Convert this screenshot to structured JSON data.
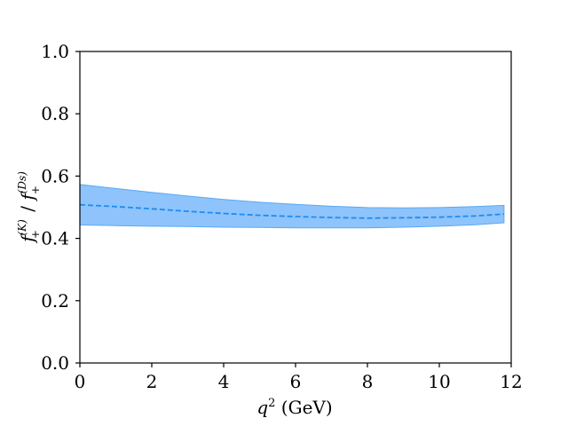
{
  "chart_data": {
    "type": "line",
    "x_label_base": "q",
    "x_label_sup": "2",
    "x_label_unit": "(GeV)",
    "y_label_numerator": "f",
    "y_label_numerator_sub": "+",
    "y_label_numerator_sup": "(K)",
    "y_label_sep": "/",
    "y_label_denominator": "f",
    "y_label_denominator_sub": "+",
    "y_label_denominator_sup": "(Ds)",
    "xlim": [
      0,
      12
    ],
    "ylim": [
      0,
      1.0
    ],
    "x_ticks": [
      0,
      2,
      4,
      6,
      8,
      10,
      12
    ],
    "x_tick_labels": [
      "0",
      "2",
      "4",
      "6",
      "8",
      "10",
      "12"
    ],
    "y_ticks": [
      0.0,
      0.2,
      0.4,
      0.6,
      0.8,
      1.0
    ],
    "y_tick_labels": [
      "0.0",
      "0.2",
      "0.4",
      "0.6",
      "0.8",
      "1.0"
    ],
    "grid": false,
    "colors": {
      "band": "#8ec4fb",
      "band_edge": "#5aa8f4",
      "line": "#1f8cf0"
    },
    "series": [
      {
        "kind": "central-dashed-line",
        "x": [
          0,
          1,
          2,
          3,
          4,
          5,
          6,
          7,
          8,
          9,
          10,
          11,
          11.8
        ],
        "y": [
          0.508,
          0.502,
          0.495,
          0.487,
          0.48,
          0.474,
          0.47,
          0.467,
          0.465,
          0.466,
          0.468,
          0.472,
          0.478
        ]
      },
      {
        "kind": "uncertainty-band",
        "x": [
          0,
          1,
          2,
          3,
          4,
          5,
          6,
          7,
          8,
          9,
          10,
          11,
          11.8
        ],
        "upper": [
          0.573,
          0.56,
          0.548,
          0.536,
          0.525,
          0.516,
          0.509,
          0.503,
          0.499,
          0.498,
          0.499,
          0.502,
          0.506
        ],
        "lower": [
          0.443,
          0.441,
          0.439,
          0.438,
          0.436,
          0.435,
          0.434,
          0.434,
          0.434,
          0.436,
          0.439,
          0.444,
          0.45
        ]
      }
    ]
  }
}
